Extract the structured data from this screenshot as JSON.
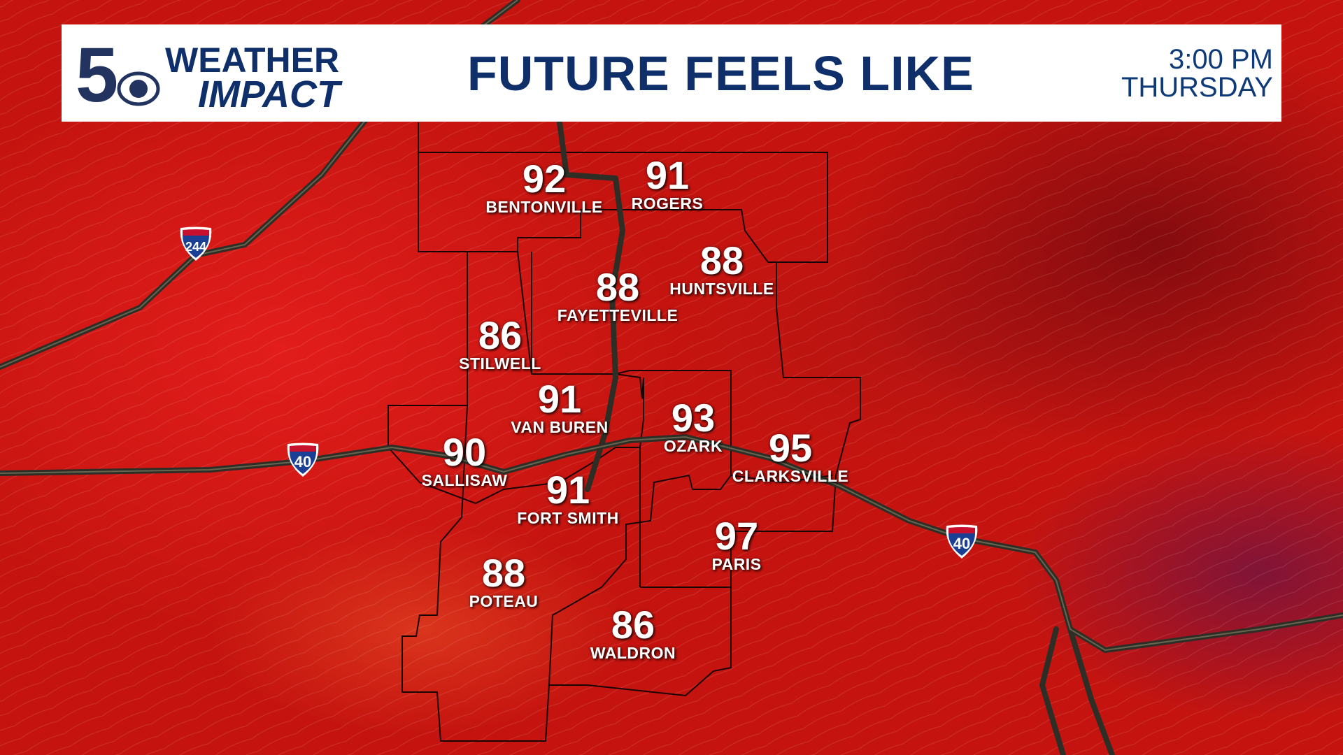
{
  "header": {
    "logo_text": {
      "channel": "5",
      "line1": "WEATHER",
      "line2": "IMPACT"
    },
    "title": "FUTURE FEELS LIKE",
    "time": "3:00 PM",
    "day": "THURSDAY"
  },
  "colors": {
    "brand_navy": "#0f2f6b",
    "heat_red": "#d8201a",
    "road": "#3a3a30"
  },
  "cities": [
    {
      "name": "BENTONVILLE",
      "value": "92"
    },
    {
      "name": "ROGERS",
      "value": "91"
    },
    {
      "name": "HUNTSVILLE",
      "value": "88"
    },
    {
      "name": "FAYETTEVILLE",
      "value": "88"
    },
    {
      "name": "STILWELL",
      "value": "86"
    },
    {
      "name": "VAN BUREN",
      "value": "91"
    },
    {
      "name": "OZARK",
      "value": "93"
    },
    {
      "name": "CLARKSVILLE",
      "value": "95"
    },
    {
      "name": "SALLISAW",
      "value": "90"
    },
    {
      "name": "FORT SMITH",
      "value": "91"
    },
    {
      "name": "PARIS",
      "value": "97"
    },
    {
      "name": "POTEAU",
      "value": "88"
    },
    {
      "name": "WALDRON",
      "value": "86"
    }
  ],
  "interstates": [
    {
      "number": "244",
      "icon": "interstate-shield-icon"
    },
    {
      "number": "40",
      "icon": "interstate-shield-icon"
    },
    {
      "number": "40",
      "icon": "interstate-shield-icon"
    }
  ]
}
